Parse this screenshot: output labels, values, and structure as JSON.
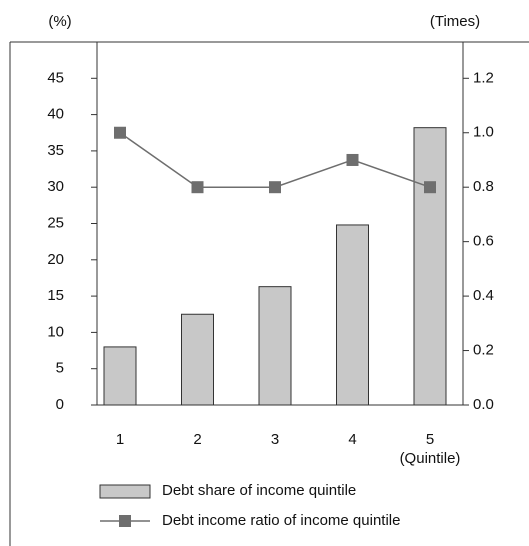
{
  "chart_data": {
    "type": "bar_line",
    "y_label": "(%)",
    "y2_label": "(Times)",
    "x_label": "(Quintile)",
    "categories": [
      "1",
      "2",
      "3",
      "4",
      "5"
    ],
    "series": [
      {
        "name": "Debt share of income quintile",
        "type": "bar",
        "color": "#c8c8c8",
        "values": [
          8.0,
          12.5,
          16.3,
          24.8,
          38.2
        ]
      },
      {
        "name": "Debt income ratio of income quintile",
        "type": "line",
        "axis": "y2",
        "color": "#6e6e6e",
        "values": [
          1.0,
          0.8,
          0.8,
          0.9,
          0.8
        ]
      }
    ],
    "ylim": [
      0,
      50
    ],
    "yticks": [
      0,
      5,
      10,
      15,
      20,
      25,
      30,
      35,
      40,
      45
    ],
    "y2lim": [
      0,
      1.3333
    ],
    "y2ticks": [
      {
        "value": 0,
        "label": "0.0"
      },
      {
        "value": 0.2,
        "label": "0.2"
      },
      {
        "value": 0.4,
        "label": "0.4"
      },
      {
        "value": 0.6,
        "label": "0.6"
      },
      {
        "value": 0.8,
        "label": "0.8"
      },
      {
        "value": 1.0,
        "label": "1.0"
      },
      {
        "value": 1.2,
        "label": "1.2"
      }
    ]
  }
}
